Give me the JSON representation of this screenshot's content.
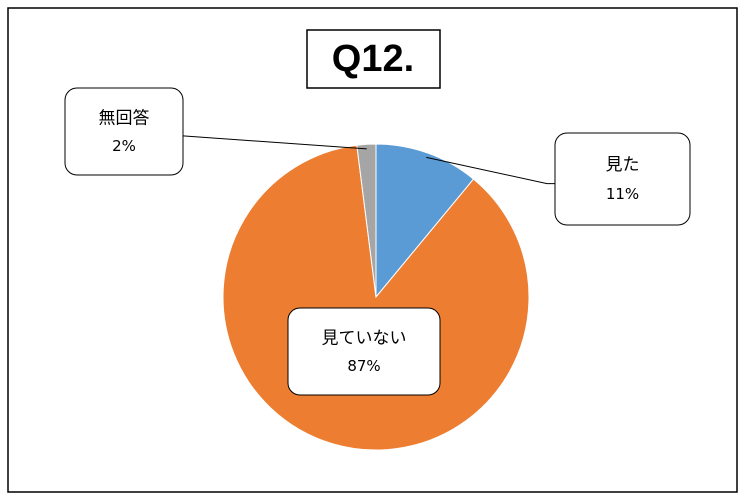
{
  "chart_data": {
    "type": "pie",
    "title": "Q12.",
    "categories": [
      "見た",
      "見ていない",
      "無回答"
    ],
    "values": [
      11,
      87,
      2
    ],
    "value_labels": [
      "11%",
      "87%",
      "2%"
    ],
    "colors": [
      "#5b9bd5",
      "#ed7d31",
      "#a5a5a5"
    ]
  }
}
